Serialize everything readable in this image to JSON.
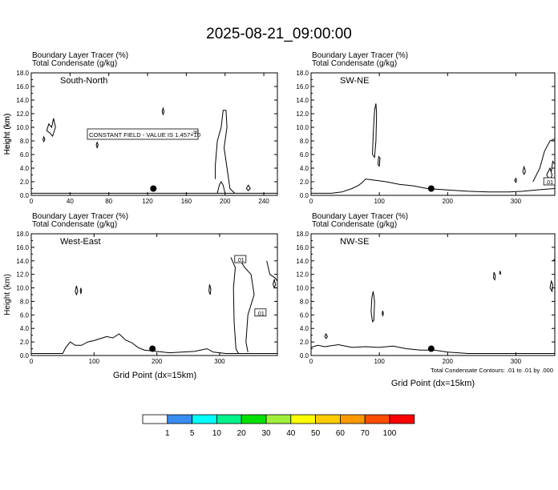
{
  "figure": {
    "title": "2025-08-21_09:00:00",
    "xlabel": "Grid Point (dx=15km)",
    "contour_note": "Total Condensate Contours: .01 to .01 by .000"
  },
  "chart_data": [
    {
      "type": "contour",
      "label": "South-North",
      "header": [
        "Boundary Layer Tracer   (%)",
        "Total Condensate   (g/kg)"
      ],
      "ylabel": "Height (km)",
      "xlim": [
        0,
        254
      ],
      "ylim": [
        0,
        18
      ],
      "xticks": [
        0,
        40,
        80,
        120,
        160,
        200,
        240
      ],
      "yticks": [
        0.0,
        2.0,
        4.0,
        6.0,
        8.0,
        10.0,
        12.0,
        14.0,
        16.0,
        18.0
      ],
      "marker": {
        "x": 126,
        "y": 1.0
      },
      "constant_field": {
        "text": "CONSTANT FIELD - VALUE IS 1.457×10",
        "exponent": "-36"
      },
      "terrain": [
        [
          0,
          0.3
        ],
        [
          100,
          0.3
        ],
        [
          130,
          0.3
        ],
        [
          190,
          0.3
        ],
        [
          200,
          0.3
        ],
        [
          254,
          0.3
        ]
      ],
      "contours": [
        [
          [
            16,
            9.5
          ],
          [
            18,
            10.5
          ],
          [
            21,
            10.0
          ],
          [
            23,
            11.3
          ],
          [
            25,
            10.0
          ],
          [
            22,
            8.7
          ],
          [
            19,
            9.2
          ],
          [
            16,
            9.5
          ]
        ],
        [
          [
            12,
            8.2
          ],
          [
            13,
            8.6
          ],
          [
            14,
            8.2
          ],
          [
            13,
            7.9
          ],
          [
            12,
            8.2
          ]
        ],
        [
          [
            135,
            12.3
          ],
          [
            136,
            12.8
          ],
          [
            137,
            12.3
          ],
          [
            136,
            11.9
          ],
          [
            135,
            12.3
          ]
        ],
        [
          [
            67,
            7.4
          ],
          [
            68,
            7.8
          ],
          [
            69,
            7.4
          ],
          [
            68,
            7.0
          ],
          [
            67,
            7.4
          ]
        ],
        [
          [
            190,
            2.4
          ],
          [
            190,
            4.5
          ],
          [
            192,
            8.0
          ],
          [
            196,
            10.0
          ],
          [
            198,
            12.5
          ],
          [
            201,
            12.5
          ],
          [
            202,
            10.0
          ],
          [
            199,
            7.0
          ],
          [
            203,
            3.0
          ],
          [
            205,
            1.0
          ],
          [
            210,
            0.3
          ]
        ],
        [
          [
            192,
            0.3
          ],
          [
            194,
            1.5
          ],
          [
            196,
            2.0
          ],
          [
            198,
            1.5
          ],
          [
            200,
            0.3
          ]
        ],
        [
          [
            222,
            1.0
          ],
          [
            224,
            1.5
          ],
          [
            226,
            1.0
          ],
          [
            224,
            0.7
          ],
          [
            222,
            1.0
          ]
        ]
      ]
    },
    {
      "type": "contour",
      "label": "SW-NE",
      "header": [
        "Boundary Layer Tracer   (%)",
        "Total Condensate   (g/kg)"
      ],
      "ylabel": "Height (km)",
      "xlim": [
        0,
        357
      ],
      "ylim": [
        0,
        18
      ],
      "xticks": [
        0,
        100,
        200,
        300
      ],
      "yticks": [
        0.0,
        2.0,
        4.0,
        6.0,
        8.0,
        10.0,
        12.0,
        14.0,
        16.0,
        18.0
      ],
      "marker": {
        "x": 176,
        "y": 1.0
      },
      "contour_label": {
        "text": ".01",
        "x": 349,
        "y": 2.0
      },
      "terrain": [
        [
          0,
          0.3
        ],
        [
          30,
          0.3
        ],
        [
          45,
          0.5
        ],
        [
          60,
          1.0
        ],
        [
          70,
          1.5
        ],
        [
          75,
          1.9
        ],
        [
          80,
          2.4
        ],
        [
          95,
          2.2
        ],
        [
          110,
          2.0
        ],
        [
          130,
          1.6
        ],
        [
          150,
          1.4
        ],
        [
          170,
          1.0
        ],
        [
          200,
          0.8
        ],
        [
          230,
          0.6
        ],
        [
          260,
          0.5
        ],
        [
          290,
          0.5
        ],
        [
          310,
          0.6
        ],
        [
          330,
          0.8
        ],
        [
          345,
          0.9
        ],
        [
          357,
          1.0
        ]
      ],
      "contours": [
        [
          [
            90,
            6.0
          ],
          [
            91,
            9.0
          ],
          [
            93,
            12.5
          ],
          [
            95,
            13.5
          ],
          [
            96,
            12.0
          ],
          [
            95,
            8.0
          ],
          [
            93,
            5.6
          ],
          [
            90,
            6.0
          ]
        ],
        [
          [
            98,
            4.5
          ],
          [
            99,
            5.7
          ],
          [
            101,
            5.5
          ],
          [
            100,
            4.3
          ],
          [
            98,
            4.5
          ]
        ],
        [
          [
            298,
            2.2
          ],
          [
            300,
            2.5
          ],
          [
            301,
            2.2
          ],
          [
            300,
            1.9
          ],
          [
            298,
            2.2
          ]
        ],
        [
          [
            310,
            3.5
          ],
          [
            312,
            4.2
          ],
          [
            314,
            3.5
          ],
          [
            312,
            3.1
          ],
          [
            310,
            3.5
          ]
        ],
        [
          [
            325,
            2.0
          ],
          [
            335,
            4.0
          ],
          [
            342,
            6.5
          ],
          [
            350,
            8.0
          ],
          [
            357,
            8.3
          ]
        ],
        [
          [
            345,
            3.0
          ],
          [
            350,
            4.0
          ],
          [
            353,
            3.0
          ],
          [
            350,
            2.2
          ],
          [
            345,
            3.0
          ]
        ],
        [
          [
            352,
            3.5
          ],
          [
            354,
            5.0
          ],
          [
            357,
            4.6
          ]
        ]
      ]
    },
    {
      "type": "contour",
      "label": "West-East",
      "header": [
        "Boundary Layer Tracer   (%)",
        "Total Condensate   (g/kg)"
      ],
      "ylabel": "Height (km)",
      "xlim": [
        0,
        392
      ],
      "ylim": [
        0,
        18
      ],
      "xticks": [
        0,
        100,
        200,
        300
      ],
      "yticks": [
        0.0,
        2.0,
        4.0,
        6.0,
        8.0,
        10.0,
        12.0,
        14.0,
        16.0,
        18.0
      ],
      "marker": {
        "x": 193,
        "y": 1.0
      },
      "contour_labels": [
        {
          "text": ".01",
          "x": 333,
          "y": 14.2
        },
        {
          "text": ".01",
          "x": 365,
          "y": 6.3
        }
      ],
      "terrain": [
        [
          0,
          0.3
        ],
        [
          50,
          0.3
        ],
        [
          55,
          1.2
        ],
        [
          62,
          2.0
        ],
        [
          70,
          1.5
        ],
        [
          80,
          1.5
        ],
        [
          90,
          2.0
        ],
        [
          100,
          2.2
        ],
        [
          110,
          2.5
        ],
        [
          120,
          2.8
        ],
        [
          130,
          2.6
        ],
        [
          140,
          3.2
        ],
        [
          150,
          2.3
        ],
        [
          160,
          1.9
        ],
        [
          170,
          1.2
        ],
        [
          180,
          0.8
        ],
        [
          200,
          0.6
        ],
        [
          220,
          0.4
        ],
        [
          260,
          0.6
        ],
        [
          280,
          1.0
        ],
        [
          290,
          0.5
        ],
        [
          310,
          0.3
        ],
        [
          392,
          0.3
        ]
      ],
      "contours": [
        [
          [
            70,
            9.5
          ],
          [
            72,
            10.3
          ],
          [
            74,
            9.5
          ],
          [
            72,
            9.0
          ],
          [
            70,
            9.5
          ]
        ],
        [
          [
            78,
            9.5
          ],
          [
            79,
            10.0
          ],
          [
            80,
            9.5
          ],
          [
            79,
            9.2
          ],
          [
            78,
            9.5
          ]
        ],
        [
          [
            283,
            9.5
          ],
          [
            284,
            10.5
          ],
          [
            286,
            9.8
          ],
          [
            285,
            9.0
          ],
          [
            283,
            9.5
          ]
        ],
        [
          [
            318,
            14.5
          ],
          [
            325,
            13.0
          ],
          [
            322,
            10.0
          ],
          [
            323,
            5.0
          ],
          [
            326,
            1.0
          ],
          [
            330,
            0.3
          ]
        ],
        [
          [
            330,
            14.5
          ],
          [
            340,
            13.0
          ],
          [
            350,
            12.0
          ],
          [
            355,
            9.0
          ],
          [
            345,
            6.0
          ],
          [
            342,
            2.0
          ],
          [
            345,
            0.5
          ]
        ],
        [
          [
            375,
            14.0
          ],
          [
            380,
            12.0
          ],
          [
            388,
            11.5
          ],
          [
            392,
            11.0
          ]
        ],
        [
          [
            385,
            10.5
          ],
          [
            387,
            11.2
          ],
          [
            389,
            10.5
          ],
          [
            387,
            10.0
          ],
          [
            385,
            10.5
          ]
        ]
      ]
    },
    {
      "type": "contour",
      "label": "NW-SE",
      "header": [
        "Boundary Layer Tracer   (%)",
        "Total Condensate   (g/kg)"
      ],
      "ylabel": "",
      "xlim": [
        0,
        357
      ],
      "ylim": [
        0,
        18
      ],
      "xticks": [
        0,
        100,
        200,
        300
      ],
      "yticks": [
        0.0,
        2.0,
        4.0,
        6.0,
        8.0,
        10.0,
        12.0,
        14.0,
        16.0,
        18.0
      ],
      "marker": {
        "x": 176,
        "y": 1.0
      },
      "terrain": [
        [
          0,
          1.2
        ],
        [
          10,
          1.5
        ],
        [
          20,
          1.3
        ],
        [
          40,
          1.6
        ],
        [
          60,
          1.2
        ],
        [
          80,
          1.3
        ],
        [
          100,
          1.2
        ],
        [
          120,
          1.4
        ],
        [
          140,
          1.0
        ],
        [
          160,
          0.8
        ],
        [
          180,
          0.8
        ],
        [
          200,
          0.5
        ],
        [
          230,
          0.3
        ],
        [
          357,
          0.3
        ]
      ],
      "contours": [
        [
          [
            88,
            6.5
          ],
          [
            89,
            8.5
          ],
          [
            91,
            9.5
          ],
          [
            93,
            8.0
          ],
          [
            92,
            5.2
          ],
          [
            90,
            5.0
          ],
          [
            88,
            6.5
          ]
        ],
        [
          [
            104,
            6.2
          ],
          [
            105,
            6.6
          ],
          [
            106,
            6.2
          ],
          [
            105,
            5.9
          ],
          [
            104,
            6.2
          ]
        ],
        [
          [
            20,
            2.8
          ],
          [
            22,
            3.2
          ],
          [
            24,
            2.8
          ],
          [
            22,
            2.5
          ],
          [
            20,
            2.8
          ]
        ],
        [
          [
            267,
            11.5
          ],
          [
            268,
            12.3
          ],
          [
            270,
            11.8
          ],
          [
            269,
            11.2
          ],
          [
            267,
            11.5
          ]
        ],
        [
          [
            276,
            12.0
          ],
          [
            277,
            12.5
          ],
          [
            278,
            12.0
          ]
        ],
        [
          [
            350,
            10.0
          ],
          [
            352,
            11.0
          ],
          [
            354,
            10.5
          ],
          [
            353,
            9.5
          ],
          [
            350,
            10.0
          ]
        ],
        [
          [
            355,
            14.0
          ],
          [
            357,
            14.3
          ]
        ]
      ]
    }
  ],
  "colorbar": {
    "labels": [
      "1",
      "5",
      "10",
      "20",
      "30",
      "40",
      "50",
      "60",
      "70",
      "100"
    ],
    "colors": [
      "#ffffff",
      "#3a8df0",
      "#00ffff",
      "#00f28c",
      "#00e100",
      "#9ff03a",
      "#ffff00",
      "#ffcc00",
      "#ff9900",
      "#ff4d00",
      "#ff0000"
    ]
  }
}
